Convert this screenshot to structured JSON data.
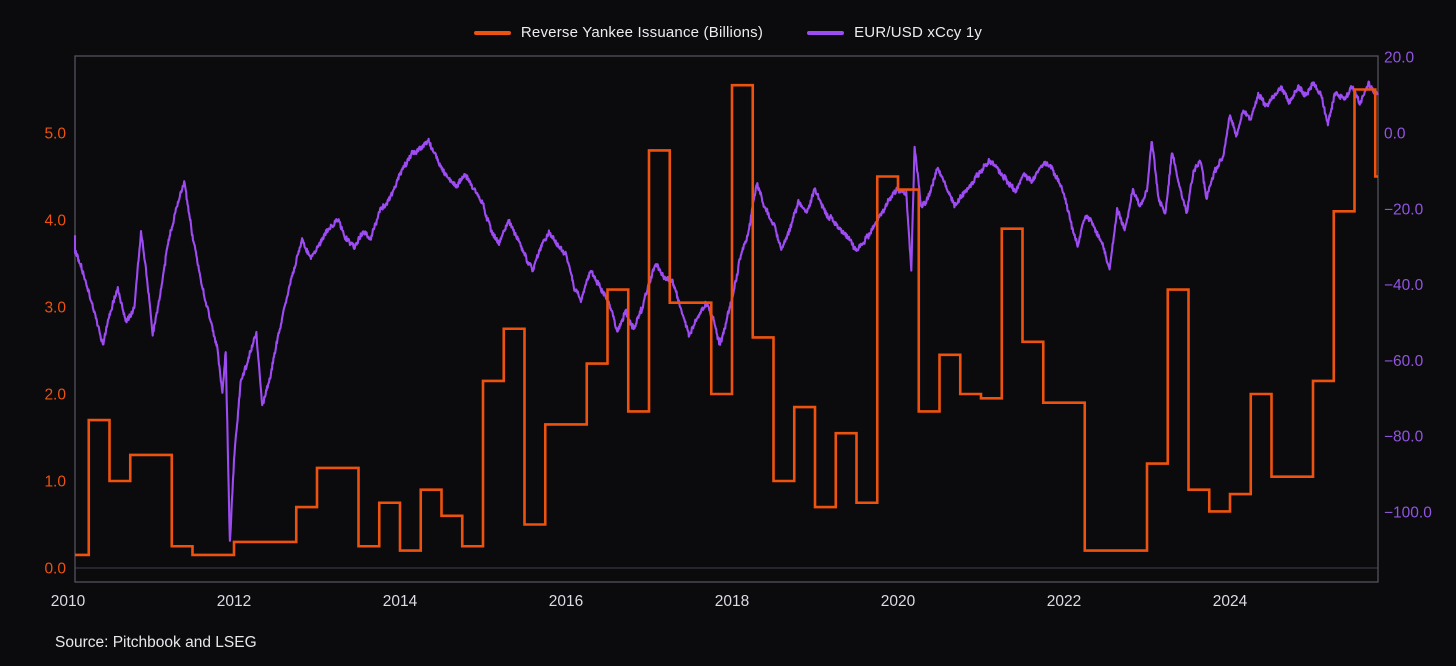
{
  "page": {
    "background": "#0b0a0d",
    "frame_color": "#53535d",
    "zero_line_color": "#43434b"
  },
  "legend": {
    "items": [
      {
        "label": "Reverse Yankee Issuance (Billions)",
        "color": "#ed530f"
      },
      {
        "label": "EUR/USD xCcy 1y",
        "color": "#9d4bf2"
      }
    ]
  },
  "source_note": "Source: Pitchbook and LSEG",
  "chart_data": {
    "type": "line",
    "title": "",
    "legend_position": "top-center",
    "grid": "zero-line only, full frame box",
    "x_axis": {
      "base_year": 2010,
      "range_years": [
        2010.08,
        2025.78
      ],
      "ticks": [
        {
          "value": 2010,
          "label": "2010"
        },
        {
          "value": 2012,
          "label": "2012"
        },
        {
          "value": 2014,
          "label": "2014"
        },
        {
          "value": 2016,
          "label": "2016"
        },
        {
          "value": 2018,
          "label": "2018"
        },
        {
          "value": 2020,
          "label": "2020"
        },
        {
          "value": 2022,
          "label": "2022"
        },
        {
          "value": 2024,
          "label": "2024"
        }
      ],
      "tick_color": "#dcdce2"
    },
    "left_axis": {
      "series": "Reverse Yankee Issuance (Billions)",
      "color": "#ed530f",
      "range": [
        -0.16,
        5.89
      ],
      "ticks": [
        {
          "value": 5.0,
          "label": "5.0"
        },
        {
          "value": 4.0,
          "label": "4.0"
        },
        {
          "value": 3.0,
          "label": "3.0"
        },
        {
          "value": 2.0,
          "label": "2.0"
        },
        {
          "value": 1.0,
          "label": "1.0"
        },
        {
          "value": 0.0,
          "label": "0.0"
        }
      ]
    },
    "right_axis": {
      "series": "EUR/USD xCcy 1y",
      "color": "#9155e0",
      "range": [
        -118.5,
        20.3
      ],
      "ticks": [
        {
          "value": 20,
          "label": "20.0"
        },
        {
          "value": 0,
          "label": "0.0"
        },
        {
          "value": -20,
          "label": "−20.0"
        },
        {
          "value": -40,
          "label": "−40.0"
        },
        {
          "value": -60,
          "label": "−60.0"
        },
        {
          "value": -80,
          "label": "−80.0"
        },
        {
          "value": -100,
          "label": "−100.0"
        }
      ]
    },
    "series": [
      {
        "name": "Reverse Yankee Issuance (Billions)",
        "style": "step",
        "axis": "left",
        "color": "#ed530f",
        "stroke_width": 2.6,
        "start_year": 2010.0,
        "interval_years": 0.25,
        "values": [
          0.15,
          1.7,
          1.0,
          1.3,
          1.3,
          0.25,
          0.15,
          0.15,
          0.3,
          0.3,
          0.3,
          0.7,
          1.15,
          1.15,
          0.25,
          0.75,
          0.2,
          0.9,
          0.6,
          0.25,
          2.15,
          2.75,
          0.5,
          1.65,
          1.65,
          2.35,
          3.2,
          1.8,
          4.8,
          3.05,
          3.05,
          2.0,
          5.55,
          2.65,
          1.0,
          1.85,
          0.7,
          1.55,
          0.75,
          4.5,
          4.35,
          1.8,
          2.45,
          2.0,
          1.95,
          3.9,
          2.6,
          1.9,
          1.9,
          0.2,
          0.2,
          0.2,
          1.2,
          3.2,
          0.9,
          0.65,
          0.85,
          2.0,
          1.05,
          1.05,
          2.15,
          4.1,
          5.5,
          4.5
        ]
      },
      {
        "name": "EUR/USD xCcy 1y",
        "style": "noisy-line",
        "axis": "right",
        "color": "#9d4bf2",
        "stroke_width": 2.1,
        "points": [
          [
            2010.0,
            -28
          ],
          [
            2010.1,
            -32
          ],
          [
            2010.2,
            -38
          ],
          [
            2010.3,
            -46
          ],
          [
            2010.42,
            -56
          ],
          [
            2010.5,
            -48
          ],
          [
            2010.6,
            -41
          ],
          [
            2010.7,
            -50
          ],
          [
            2010.8,
            -46
          ],
          [
            2010.88,
            -26
          ],
          [
            2010.95,
            -38
          ],
          [
            2011.02,
            -53
          ],
          [
            2011.1,
            -44
          ],
          [
            2011.2,
            -30
          ],
          [
            2011.3,
            -20
          ],
          [
            2011.4,
            -13
          ],
          [
            2011.5,
            -27
          ],
          [
            2011.6,
            -39
          ],
          [
            2011.72,
            -50
          ],
          [
            2011.8,
            -57
          ],
          [
            2011.86,
            -69
          ],
          [
            2011.9,
            -58
          ],
          [
            2011.95,
            -108
          ],
          [
            2012.0,
            -86
          ],
          [
            2012.08,
            -66
          ],
          [
            2012.18,
            -59
          ],
          [
            2012.27,
            -53
          ],
          [
            2012.34,
            -72
          ],
          [
            2012.44,
            -64
          ],
          [
            2012.53,
            -54
          ],
          [
            2012.62,
            -45
          ],
          [
            2012.72,
            -36
          ],
          [
            2012.82,
            -28
          ],
          [
            2012.92,
            -33
          ],
          [
            2013.0,
            -30
          ],
          [
            2013.12,
            -26
          ],
          [
            2013.25,
            -23
          ],
          [
            2013.35,
            -28
          ],
          [
            2013.45,
            -30
          ],
          [
            2013.55,
            -26
          ],
          [
            2013.65,
            -28
          ],
          [
            2013.75,
            -21
          ],
          [
            2013.88,
            -17
          ],
          [
            2014.0,
            -11
          ],
          [
            2014.12,
            -6
          ],
          [
            2014.25,
            -4
          ],
          [
            2014.35,
            -2
          ],
          [
            2014.45,
            -7
          ],
          [
            2014.55,
            -11
          ],
          [
            2014.68,
            -14
          ],
          [
            2014.78,
            -11
          ],
          [
            2014.9,
            -15
          ],
          [
            2015.0,
            -19
          ],
          [
            2015.1,
            -26
          ],
          [
            2015.2,
            -29
          ],
          [
            2015.3,
            -23
          ],
          [
            2015.42,
            -28
          ],
          [
            2015.52,
            -33
          ],
          [
            2015.6,
            -36
          ],
          [
            2015.7,
            -30
          ],
          [
            2015.8,
            -26
          ],
          [
            2015.9,
            -30
          ],
          [
            2016.0,
            -32
          ],
          [
            2016.1,
            -41
          ],
          [
            2016.18,
            -44
          ],
          [
            2016.3,
            -36
          ],
          [
            2016.42,
            -41
          ],
          [
            2016.52,
            -45
          ],
          [
            2016.62,
            -52
          ],
          [
            2016.72,
            -47
          ],
          [
            2016.82,
            -52
          ],
          [
            2016.92,
            -46
          ],
          [
            2017.0,
            -40
          ],
          [
            2017.08,
            -34
          ],
          [
            2017.18,
            -38
          ],
          [
            2017.28,
            -39
          ],
          [
            2017.38,
            -46
          ],
          [
            2017.48,
            -53
          ],
          [
            2017.58,
            -49
          ],
          [
            2017.68,
            -45
          ],
          [
            2017.78,
            -49
          ],
          [
            2017.85,
            -56
          ],
          [
            2017.93,
            -50
          ],
          [
            2018.0,
            -44
          ],
          [
            2018.1,
            -33
          ],
          [
            2018.2,
            -26
          ],
          [
            2018.3,
            -13
          ],
          [
            2018.4,
            -20
          ],
          [
            2018.5,
            -24
          ],
          [
            2018.6,
            -31
          ],
          [
            2018.7,
            -25
          ],
          [
            2018.8,
            -18
          ],
          [
            2018.9,
            -21
          ],
          [
            2019.0,
            -15
          ],
          [
            2019.12,
            -21
          ],
          [
            2019.25,
            -24
          ],
          [
            2019.38,
            -27
          ],
          [
            2019.5,
            -31
          ],
          [
            2019.62,
            -28
          ],
          [
            2019.75,
            -23
          ],
          [
            2019.88,
            -18
          ],
          [
            2020.0,
            -15
          ],
          [
            2020.1,
            -16
          ],
          [
            2020.16,
            -36
          ],
          [
            2020.2,
            -3
          ],
          [
            2020.28,
            -20
          ],
          [
            2020.38,
            -16
          ],
          [
            2020.48,
            -9
          ],
          [
            2020.58,
            -14
          ],
          [
            2020.68,
            -19
          ],
          [
            2020.78,
            -16
          ],
          [
            2020.9,
            -13
          ],
          [
            2021.0,
            -10
          ],
          [
            2021.1,
            -7
          ],
          [
            2021.22,
            -10
          ],
          [
            2021.32,
            -13
          ],
          [
            2021.42,
            -15
          ],
          [
            2021.52,
            -11
          ],
          [
            2021.62,
            -13
          ],
          [
            2021.72,
            -9
          ],
          [
            2021.82,
            -8
          ],
          [
            2021.92,
            -12
          ],
          [
            2022.0,
            -16
          ],
          [
            2022.1,
            -25
          ],
          [
            2022.17,
            -30
          ],
          [
            2022.26,
            -21
          ],
          [
            2022.36,
            -25
          ],
          [
            2022.46,
            -29
          ],
          [
            2022.55,
            -36
          ],
          [
            2022.64,
            -20
          ],
          [
            2022.73,
            -26
          ],
          [
            2022.83,
            -15
          ],
          [
            2022.92,
            -19
          ],
          [
            2023.0,
            -15
          ],
          [
            2023.06,
            -2
          ],
          [
            2023.14,
            -17
          ],
          [
            2023.22,
            -22
          ],
          [
            2023.3,
            -5
          ],
          [
            2023.4,
            -15
          ],
          [
            2023.48,
            -21
          ],
          [
            2023.56,
            -10
          ],
          [
            2023.64,
            -7
          ],
          [
            2023.72,
            -17
          ],
          [
            2023.82,
            -10
          ],
          [
            2023.92,
            -6
          ],
          [
            2024.0,
            5
          ],
          [
            2024.08,
            -1
          ],
          [
            2024.16,
            6
          ],
          [
            2024.25,
            3
          ],
          [
            2024.34,
            10
          ],
          [
            2024.44,
            7
          ],
          [
            2024.54,
            10
          ],
          [
            2024.62,
            12
          ],
          [
            2024.72,
            8
          ],
          [
            2024.82,
            12
          ],
          [
            2024.92,
            10
          ],
          [
            2025.0,
            13
          ],
          [
            2025.1,
            10
          ],
          [
            2025.18,
            2
          ],
          [
            2025.27,
            11
          ],
          [
            2025.37,
            9
          ],
          [
            2025.47,
            12
          ],
          [
            2025.57,
            8
          ],
          [
            2025.67,
            13
          ],
          [
            2025.74,
            11
          ],
          [
            2025.78,
            10
          ]
        ]
      }
    ]
  }
}
